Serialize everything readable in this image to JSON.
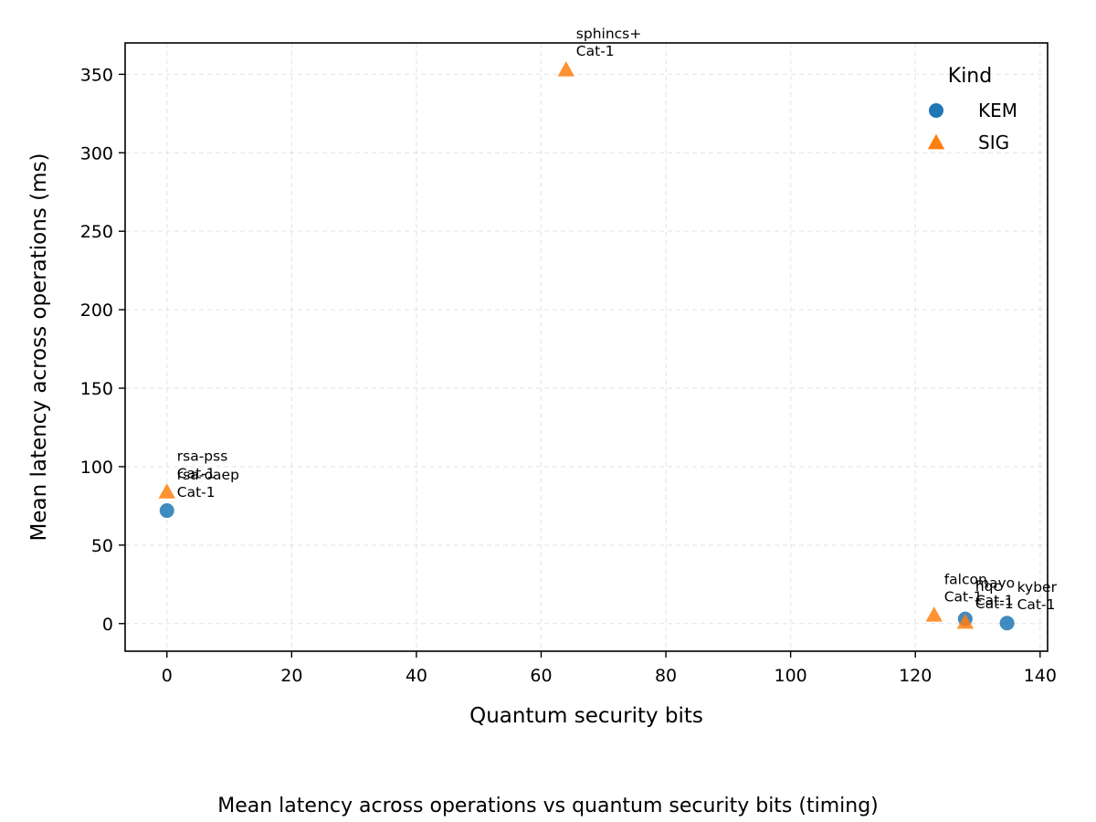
{
  "chart_data": {
    "type": "scatter",
    "xlabel": "Quantum security bits",
    "ylabel": "Mean latency across operations (ms)",
    "xlim": [
      -6.7,
      141.2
    ],
    "ylim": [
      -17.6,
      370.0
    ],
    "x_ticks": [
      0,
      20,
      40,
      60,
      80,
      100,
      120,
      140
    ],
    "y_ticks": [
      0,
      50,
      100,
      150,
      200,
      250,
      300,
      350
    ],
    "grid": true,
    "legend": {
      "title": "Kind",
      "placement": "top-right"
    },
    "series": [
      {
        "name": "KEM",
        "marker": "circle",
        "color": "#1f77b4",
        "points": [
          {
            "x": 0,
            "y": 72,
            "label": [
              "rsa-oaep",
              "Cat-1"
            ]
          },
          {
            "x": 128,
            "y": 3,
            "label": [
              "mayo",
              "Cat-1"
            ]
          },
          {
            "x": 134.7,
            "y": 0.3,
            "label": [
              "kyber",
              "Cat-1"
            ]
          }
        ]
      },
      {
        "name": "SIG",
        "marker": "triangle",
        "color": "#ff7f0e",
        "points": [
          {
            "x": 0,
            "y": 84,
            "label": [
              "rsa-pss",
              "Cat-1"
            ]
          },
          {
            "x": 64,
            "y": 353,
            "label": [
              "sphincs+",
              "Cat-1"
            ]
          },
          {
            "x": 123,
            "y": 5.5,
            "label": [
              "falcon",
              "Cat-1"
            ]
          },
          {
            "x": 128,
            "y": 1,
            "label": [
              "hqc",
              "Cat-1"
            ]
          }
        ]
      }
    ]
  },
  "caption": "Mean latency across operations vs quantum security bits (timing)"
}
